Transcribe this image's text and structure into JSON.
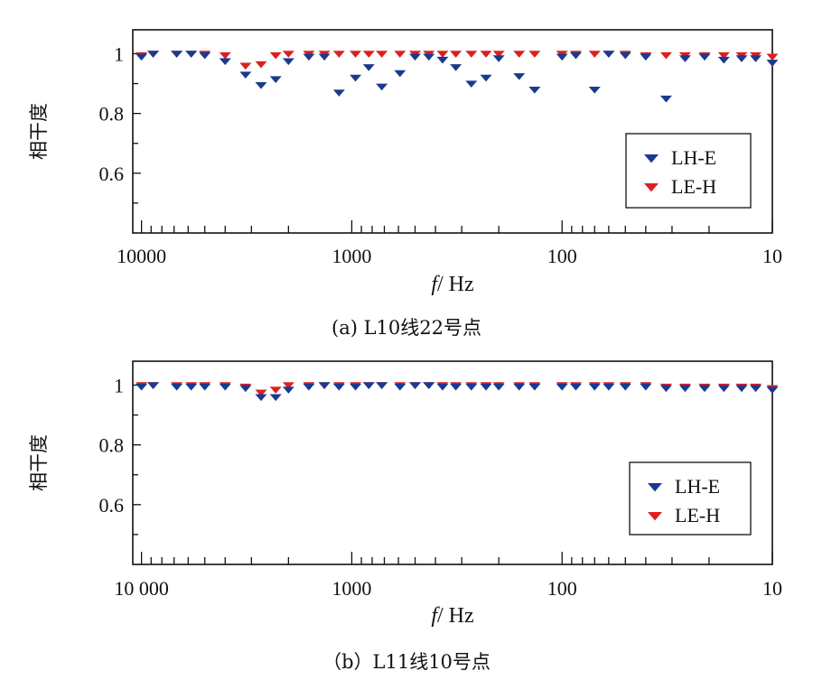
{
  "colors": {
    "LH-E": "#1a3a8f",
    "LE-H": "#dd1f1f",
    "axis": "#111111"
  },
  "chart_data": [
    {
      "type": "scatter",
      "caption": "(a) L10线22号点",
      "ylabel": "相干度",
      "xlabel_italic": "f",
      "xlabel_rest": "/ Hz",
      "x_scale": "log",
      "x_reversed": true,
      "xlim": [
        10,
        11000
      ],
      "ylim": [
        0.4,
        1.08
      ],
      "yticks": [
        0.6,
        0.8,
        1
      ],
      "ytick_labels": [
        "0.6",
        "0.8",
        "1"
      ],
      "xticks": [
        10000,
        1000,
        100,
        10
      ],
      "xtick_labels": [
        "10000",
        "1000",
        "100",
        "10"
      ],
      "legend_position": "lower-right",
      "series": [
        {
          "name": "LH-E",
          "x": [
            10000,
            8800,
            6800,
            5800,
            5000,
            4000,
            3200,
            2700,
            2300,
            2000,
            1600,
            1350,
            1150,
            960,
            830,
            720,
            590,
            500,
            430,
            370,
            320,
            270,
            230,
            200,
            160,
            135,
            100,
            86,
            70,
            60,
            50,
            40,
            32,
            26,
            21,
            17,
            14,
            12,
            10
          ],
          "y": [
            0.99,
            1.0,
            1.0,
            1.0,
            0.995,
            0.975,
            0.93,
            0.895,
            0.915,
            0.975,
            0.99,
            0.99,
            0.87,
            0.92,
            0.955,
            0.89,
            0.935,
            0.99,
            0.99,
            0.98,
            0.955,
            0.9,
            0.92,
            0.985,
            0.925,
            0.88,
            0.99,
            0.995,
            0.88,
            1.0,
            0.995,
            0.99,
            0.85,
            0.985,
            0.99,
            0.98,
            0.985,
            0.985,
            0.97
          ]
        },
        {
          "name": "LE-H",
          "x": [
            10000,
            8800,
            6800,
            5800,
            5000,
            4000,
            3200,
            2700,
            2300,
            2000,
            1600,
            1350,
            1150,
            960,
            830,
            720,
            590,
            500,
            430,
            370,
            320,
            270,
            230,
            200,
            160,
            135,
            100,
            86,
            70,
            60,
            50,
            40,
            32,
            26,
            21,
            17,
            14,
            12,
            10
          ],
          "y": [
            0.995,
            1.0,
            1.0,
            1.0,
            1.0,
            0.995,
            0.96,
            0.965,
            0.995,
            1.0,
            1.0,
            1.0,
            1.0,
            1.0,
            1.0,
            1.0,
            1.0,
            1.0,
            1.0,
            1.0,
            1.0,
            1.0,
            1.0,
            1.0,
            1.0,
            1.0,
            1.0,
            1.0,
            1.0,
            1.0,
            1.0,
            0.995,
            0.995,
            0.995,
            0.995,
            0.995,
            0.995,
            0.995,
            0.99
          ]
        }
      ]
    },
    {
      "type": "scatter",
      "caption": "（b）L11线10号点",
      "ylabel": "相干度",
      "xlabel_italic": "f",
      "xlabel_rest": "/ Hz",
      "x_scale": "log",
      "x_reversed": true,
      "xlim": [
        10,
        11000
      ],
      "ylim": [
        0.4,
        1.08
      ],
      "yticks": [
        0.6,
        0.8,
        1
      ],
      "ytick_labels": [
        "0.6",
        "0.8",
        "1"
      ],
      "xticks": [
        10000,
        1000,
        100,
        10
      ],
      "xtick_labels": [
        "10 000",
        "1000",
        "100",
        "10"
      ],
      "legend_position": "lower-right",
      "series": [
        {
          "name": "LH-E",
          "x": [
            10000,
            8800,
            6800,
            5800,
            5000,
            4000,
            3200,
            2700,
            2300,
            2000,
            1600,
            1350,
            1150,
            960,
            830,
            720,
            590,
            500,
            430,
            370,
            320,
            270,
            230,
            200,
            160,
            135,
            100,
            86,
            70,
            60,
            50,
            40,
            32,
            26,
            21,
            17,
            14,
            12,
            10
          ],
          "y": [
            0.995,
            1.0,
            0.995,
            0.995,
            0.995,
            0.995,
            0.99,
            0.96,
            0.96,
            0.985,
            0.995,
            1.0,
            0.995,
            0.995,
            1.0,
            1.0,
            0.995,
            1.0,
            1.0,
            0.995,
            0.995,
            0.995,
            0.995,
            0.995,
            0.995,
            0.995,
            0.995,
            0.995,
            0.995,
            0.995,
            0.995,
            0.995,
            0.99,
            0.99,
            0.99,
            0.99,
            0.99,
            0.99,
            0.985
          ]
        },
        {
          "name": "LE-H",
          "x": [
            10000,
            8800,
            6800,
            5800,
            5000,
            4000,
            3200,
            2700,
            2300,
            2000,
            1600,
            1350,
            1150,
            960,
            830,
            720,
            590,
            500,
            430,
            370,
            320,
            270,
            230,
            200,
            160,
            135,
            100,
            86,
            70,
            60,
            50,
            40,
            32,
            26,
            21,
            17,
            14,
            12,
            10
          ],
          "y": [
            1.0,
            1.0,
            1.0,
            1.0,
            1.0,
            1.0,
            0.995,
            0.975,
            0.985,
            1.0,
            1.0,
            1.0,
            1.0,
            1.0,
            1.0,
            1.0,
            1.0,
            1.0,
            1.0,
            1.0,
            1.0,
            1.0,
            1.0,
            1.0,
            1.0,
            1.0,
            1.0,
            1.0,
            1.0,
            1.0,
            1.0,
            1.0,
            0.995,
            0.995,
            0.995,
            0.995,
            0.995,
            0.995,
            0.99
          ]
        }
      ]
    }
  ]
}
